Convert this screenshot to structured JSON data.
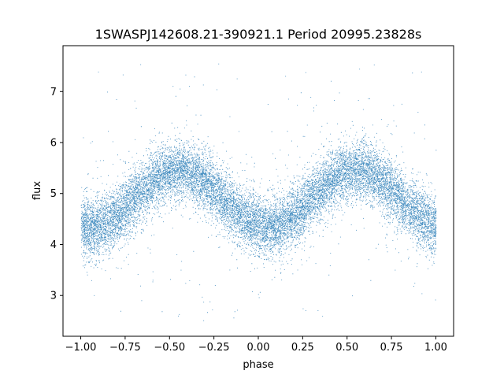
{
  "chart_data": {
    "type": "scatter",
    "title": "1SWASPJ142608.21-390921.1 Period 20995.23828s",
    "xlabel": "phase",
    "ylabel": "flux",
    "xlim": [
      -1.1,
      1.1
    ],
    "ylim": [
      2.2,
      7.9
    ],
    "x_ticks": [
      -1.0,
      -0.75,
      -0.5,
      -0.25,
      0.0,
      0.25,
      0.5,
      0.75,
      1.0
    ],
    "x_tick_labels": [
      "−1.00",
      "−0.75",
      "−0.50",
      "−0.25",
      "0.00",
      "0.25",
      "0.50",
      "0.75",
      "1.00"
    ],
    "y_ticks": [
      3,
      4,
      5,
      6,
      7
    ],
    "y_tick_labels": [
      "3",
      "4",
      "5",
      "6",
      "7"
    ],
    "grid": false,
    "point_color": "#1f77b4",
    "series": [
      {
        "shape": "sinusoid, two cycles over phase -1 to 1",
        "mean_flux": 4.9,
        "amplitude": 0.55,
        "max_phase": [
          -0.45,
          0.55
        ],
        "min_phase": [
          -0.95,
          0.05
        ],
        "core_scatter": 0.28,
        "outlier_range": [
          2.5,
          7.6
        ],
        "point_count": 16000,
        "values": [
          {
            "x": -1.0,
            "y": 4.5
          },
          {
            "x": -0.75,
            "y": 4.9
          },
          {
            "x": -0.5,
            "y": 5.4
          },
          {
            "x": -0.25,
            "y": 5.0
          },
          {
            "x": 0.0,
            "y": 4.45
          },
          {
            "x": 0.25,
            "y": 4.85
          },
          {
            "x": 0.5,
            "y": 5.4
          },
          {
            "x": 0.75,
            "y": 5.1
          },
          {
            "x": 1.0,
            "y": 4.5
          }
        ]
      }
    ]
  }
}
